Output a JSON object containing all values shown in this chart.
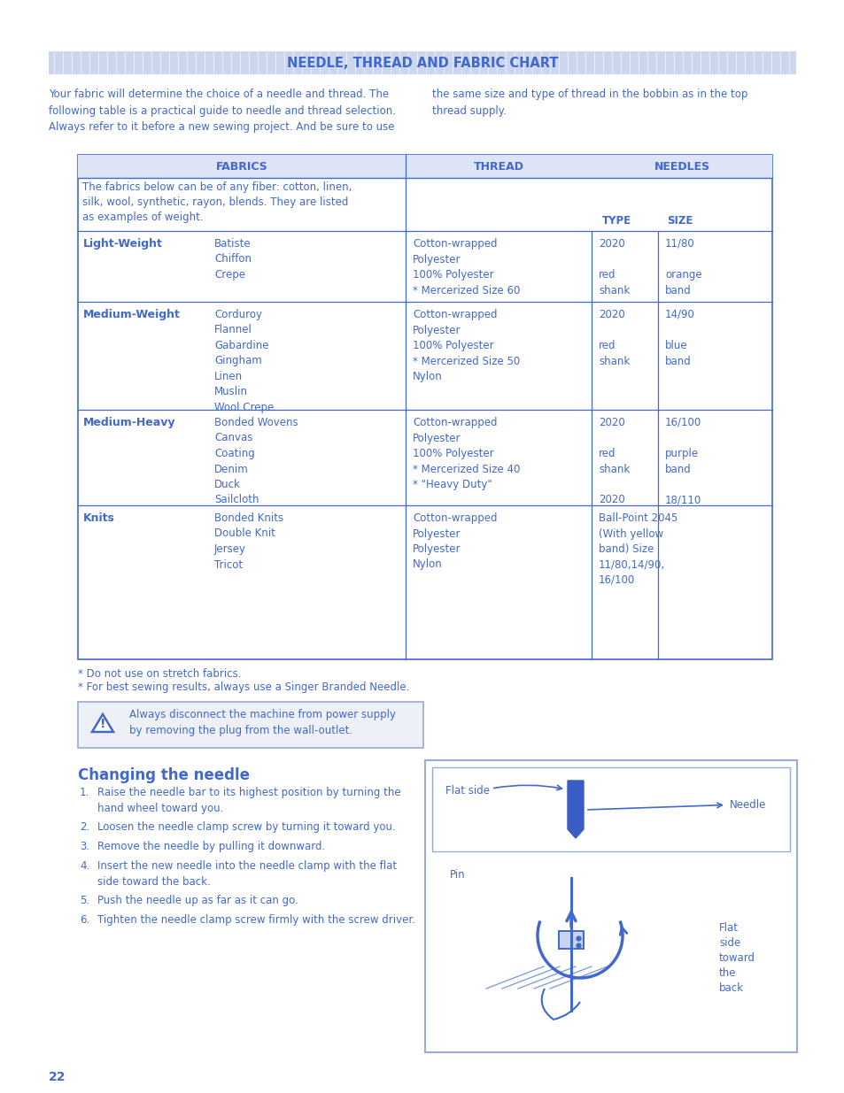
{
  "page_bg": "#ffffff",
  "blue": "#4169cc",
  "blue_header_bg": "#dde4f5",
  "title": "NEEDLE, THREAD AND FABRIC CHART",
  "title_bg": "#d0d8f0",
  "intro_text1": "Your fabric will determine the choice of a needle and thread. The\nfollowing table is a practical guide to needle and thread selection.\nAlways refer to it before a new sewing project. And be sure to use",
  "intro_text2": "the same size and type of thread in the bobbin as in the top\nthread supply.",
  "table_note": "The fabrics below can be of any fiber: cotton, linen,\nsilk, wool, synthetic, rayon, blends. They are listed\nas examples of weight.",
  "rows": [
    {
      "weight": "Light-Weight",
      "fabrics": "Batiste\nChiffon\nCrepe",
      "thread": "Cotton-wrapped\nPolyester\n100% Polyester\n* Mercerized Size 60",
      "needle_type": "2020\n\nred\nshank",
      "needle_size": "11/80\n\norange\nband"
    },
    {
      "weight": "Medium-Weight",
      "fabrics": "Corduroy\nFlannel\nGabardine\nGingham\nLinen\nMuslin\nWool Crepe",
      "thread": "Cotton-wrapped\nPolyester\n100% Polyester\n* Mercerized Size 50\nNylon",
      "needle_type": "2020\n\nred\nshank",
      "needle_size": "14/90\n\nblue\nband"
    },
    {
      "weight": "Medium-Heavy",
      "fabrics": "Bonded Wovens\nCanvas\nCoating\nDenim\nDuck\nSailcloth",
      "thread": "Cotton-wrapped\nPolyester\n100% Polyester\n* Mercerized Size 40\n* \"Heavy Duty\"",
      "needle_type": "2020\n\nred\nshank\n\n2020",
      "needle_size": "16/100\n\npurple\nband\n\n18/110"
    },
    {
      "weight": "Knits",
      "fabrics": "Bonded Knits\nDouble Knit\nJersey\nTricot",
      "thread": "Cotton-wrapped\nPolyester\nPolyester\nNylon",
      "needle_type": "Ball-Point 2045\n(With yellow\nband) Size\n11/80,14/90,\n16/100",
      "needle_size": ""
    }
  ],
  "footnotes": [
    "* Do not use on stretch fabrics.",
    "* For best sewing results, always use a Singer Branded Needle."
  ],
  "warning_text": "Always disconnect the machine from power supply\nby removing the plug from the wall-outlet.",
  "section_title": "Changing the needle",
  "steps": [
    {
      "num": "1.",
      "text": "Raise the needle bar to its highest position by turning the\nhand wheel toward you."
    },
    {
      "num": "2.",
      "text": "Loosen the needle clamp screw by turning it toward you."
    },
    {
      "num": "3.",
      "text": "Remove the needle by pulling it downward."
    },
    {
      "num": "4.",
      "text": "Insert the new needle into the needle clamp with the flat\nside toward the back.",
      "underline": "flat\nside toward the back."
    },
    {
      "num": "5.",
      "text": "Push the needle up as far as it can go."
    },
    {
      "num": "6.",
      "text": "Tighten the needle clamp screw firmly with the screw driver."
    }
  ],
  "page_number": "22"
}
